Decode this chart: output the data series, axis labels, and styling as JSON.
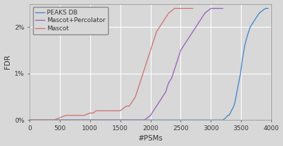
{
  "title": "",
  "xlabel": "#PSMs",
  "ylabel": "FDR",
  "xlim": [
    0,
    4000
  ],
  "ylim": [
    0,
    0.025
  ],
  "yticks": [
    0.0,
    0.01,
    0.02
  ],
  "ytick_labels": [
    "0%",
    "1%",
    "2%"
  ],
  "xticks": [
    0,
    500,
    1000,
    1500,
    2000,
    2500,
    3000,
    3500,
    4000
  ],
  "bg_color": "#d8d8d8",
  "grid_color": "#ffffff",
  "spine_color": "#888888",
  "tick_color": "#333333",
  "label_color": "#333333",
  "lines": [
    {
      "label": "PEAKS DB",
      "color": "#4488cc",
      "data_x": [
        0,
        500,
        1000,
        1500,
        2000,
        2500,
        2800,
        3000,
        3100,
        3150,
        3200,
        3250,
        3280,
        3300,
        3320,
        3340,
        3360,
        3380,
        3400,
        3430,
        3460,
        3490,
        3520,
        3560,
        3600,
        3650,
        3700,
        3750,
        3800,
        3850,
        3900,
        3950
      ],
      "data_y": [
        0,
        0,
        0,
        0,
        0,
        0,
        0,
        0,
        0,
        0,
        0,
        0.0005,
        0.001,
        0.001,
        0.0015,
        0.002,
        0.0025,
        0.003,
        0.004,
        0.006,
        0.008,
        0.01,
        0.013,
        0.016,
        0.018,
        0.02,
        0.021,
        0.022,
        0.023,
        0.0235,
        0.024,
        0.024
      ]
    },
    {
      "label": "Mascot+Percolator",
      "color": "#9966bb",
      "data_x": [
        0,
        500,
        1000,
        1500,
        1700,
        1800,
        1900,
        1950,
        2000,
        2050,
        2100,
        2150,
        2200,
        2250,
        2300,
        2350,
        2400,
        2450,
        2500,
        2550,
        2600,
        2650,
        2700,
        2750,
        2800,
        2850,
        2900,
        2950,
        3000,
        3050,
        3100,
        3150,
        3200
      ],
      "data_y": [
        0,
        0,
        0,
        0,
        0,
        0,
        0,
        0.0005,
        0.001,
        0.002,
        0.003,
        0.004,
        0.005,
        0.006,
        0.008,
        0.009,
        0.011,
        0.013,
        0.015,
        0.016,
        0.017,
        0.018,
        0.019,
        0.02,
        0.021,
        0.022,
        0.023,
        0.0235,
        0.024,
        0.024,
        0.024,
        0.024,
        0.024
      ]
    },
    {
      "label": "Mascot",
      "color": "#cc7777",
      "data_x": [
        0,
        200,
        400,
        500,
        600,
        700,
        800,
        900,
        1000,
        1050,
        1100,
        1200,
        1300,
        1400,
        1500,
        1550,
        1600,
        1650,
        1700,
        1750,
        1800,
        1850,
        1900,
        1950,
        2000,
        2050,
        2100,
        2150,
        2200,
        2250,
        2300,
        2350,
        2400,
        2450,
        2500,
        2550,
        2600,
        2650,
        2700
      ],
      "data_y": [
        0,
        0,
        0,
        0.0005,
        0.001,
        0.001,
        0.001,
        0.001,
        0.0015,
        0.0015,
        0.002,
        0.002,
        0.002,
        0.002,
        0.002,
        0.0025,
        0.003,
        0.003,
        0.004,
        0.005,
        0.007,
        0.009,
        0.011,
        0.013,
        0.015,
        0.017,
        0.019,
        0.02,
        0.021,
        0.022,
        0.023,
        0.0235,
        0.024,
        0.024,
        0.024,
        0.024,
        0.024,
        0.024,
        0.024
      ]
    }
  ],
  "legend_loc": "upper left",
  "legend_fontsize": 6.5,
  "axis_label_fontsize": 7.5,
  "tick_fontsize": 6.5,
  "figsize": [
    4.11,
    2.12
  ],
  "dpi": 100
}
